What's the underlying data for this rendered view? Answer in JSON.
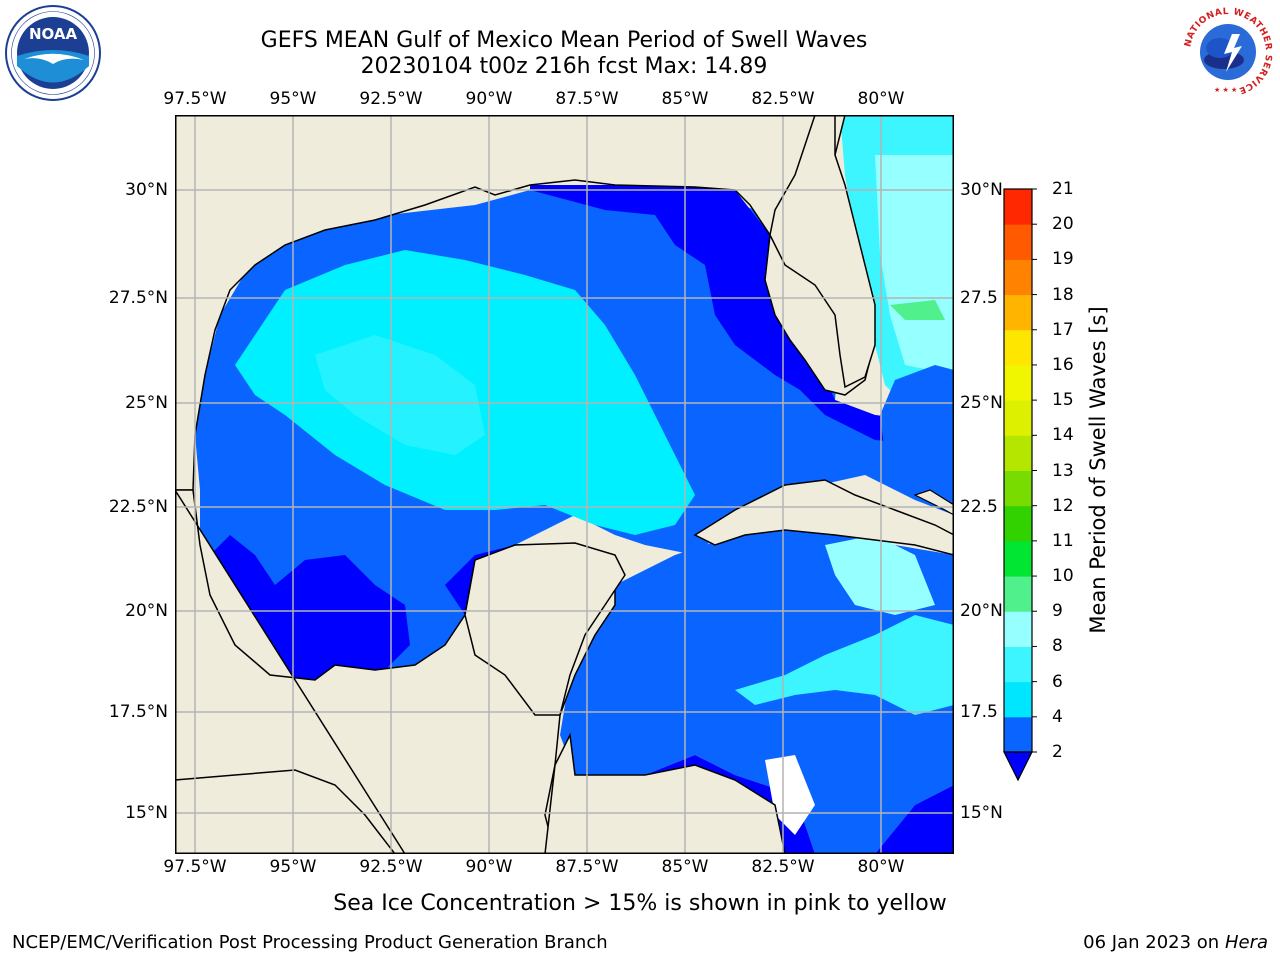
{
  "header": {
    "title_line1": "GEFS MEAN Gulf of Mexico Mean Period of Swell Waves",
    "title_line2": "20230104 t00z 216h fcst   Max: 14.89"
  },
  "logos": {
    "left": {
      "name": "noaa-logo",
      "text": "NOAA",
      "ring_text": "NATIONAL OCEANIC AND ATMOSPHERIC ADMINISTRATION · U.S. DEPARTMENT OF COMMERCE"
    },
    "right": {
      "name": "nws-logo",
      "ring_text": "NATIONAL WEATHER SERVICE"
    }
  },
  "map": {
    "lon_labels": [
      "97.5°W",
      "95°W",
      "92.5°W",
      "90°W",
      "87.5°W",
      "85°W",
      "82.5°W",
      "80°W"
    ],
    "lat_labels": [
      "30°N",
      "27.5°N",
      "25°N",
      "22.5°N",
      "20°N",
      "17.5°N",
      "15°N"
    ],
    "lat_labels_right": [
      "30°N",
      "27.5",
      "25°N",
      "22.5",
      "20°N",
      "17.5",
      "15°N"
    ],
    "land_color": "#efecdc",
    "grid_color": "#b4b4b4"
  },
  "colorbar": {
    "label": "Mean Period of Swell Waves [s]",
    "ticks": [
      "2",
      "4",
      "6",
      "8",
      "9",
      "10",
      "11",
      "12",
      "13",
      "14",
      "15",
      "16",
      "17",
      "18",
      "19",
      "20",
      "21"
    ],
    "colors": [
      "#0a64ff",
      "#00e6ff",
      "#3cf5ff",
      "#96ffff",
      "#50f08c",
      "#00e632",
      "#32d200",
      "#78dc00",
      "#b4e600",
      "#dcf000",
      "#f0f500",
      "#ffe600",
      "#ffb400",
      "#ff8200",
      "#ff5a00",
      "#ff2800"
    ],
    "extend_color": "#0000ff"
  },
  "notes": {
    "sea_ice": "Sea Ice Concentration > 15% is shown in pink to yellow"
  },
  "footer": {
    "left": "NCEP/EMC/Verification Post Processing Product Generation Branch",
    "right_prefix": "06 Jan 2023 on",
    "right_host": "Hera"
  }
}
